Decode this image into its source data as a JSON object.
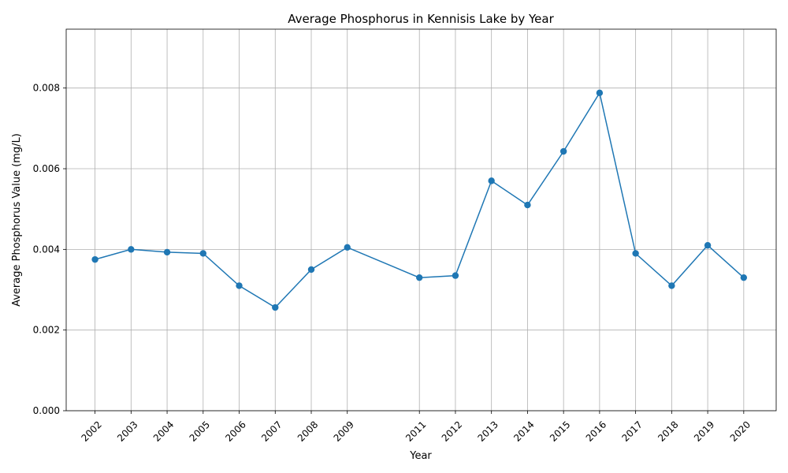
{
  "chart_data": {
    "type": "line",
    "title": "Average Phosphorus in Kennisis Lake by Year",
    "xlabel": "Year",
    "ylabel": "Average Phosphorus Value (mg/L)",
    "x": [
      2002,
      2003,
      2004,
      2005,
      2006,
      2007,
      2008,
      2009,
      2011,
      2012,
      2013,
      2014,
      2015,
      2016,
      2017,
      2018,
      2019,
      2020
    ],
    "x_tick_labels": [
      "2002",
      "2003",
      "2004",
      "2005",
      "2006",
      "2007",
      "2008",
      "2009",
      "2011",
      "2012",
      "2013",
      "2014",
      "2015",
      "2016",
      "2017",
      "2018",
      "2019",
      "2020"
    ],
    "series": [
      {
        "values": [
          0.00375,
          0.004,
          0.00393,
          0.0039,
          0.0031,
          0.00256,
          0.0035,
          0.00405,
          0.0033,
          0.00335,
          0.0057,
          0.0051,
          0.00643,
          0.00788,
          0.0039,
          0.0031,
          0.0041,
          0.0033
        ],
        "color": "#1f77b4",
        "marker": "circle"
      }
    ],
    "xlim": [
      2001.2,
      2020.9
    ],
    "ylim": [
      0,
      0.00946
    ],
    "y_ticks": [
      0,
      0.002,
      0.004,
      0.006,
      0.008
    ],
    "y_tick_labels": [
      "0.000",
      "0.002",
      "0.004",
      "0.006",
      "0.008"
    ],
    "grid": true,
    "x_tick_rotation": 45
  }
}
